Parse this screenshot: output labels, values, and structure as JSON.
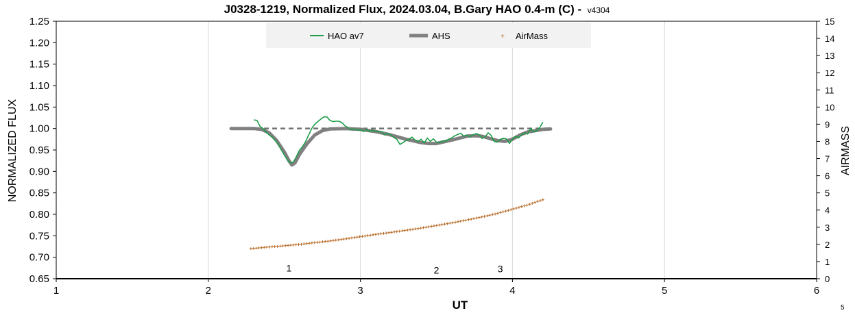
{
  "chart_data": {
    "type": "line",
    "title": "J0328-1219, Normalized Flux, 2024.03.04, B.Gary HAO 0.4-m (C) -",
    "title_suffix": "v4304",
    "xlabel": "UT",
    "ylabel": "NORMALIZED FLUX",
    "y2label": "AIRMASS",
    "xlim": [
      1,
      6
    ],
    "ylim": [
      0.65,
      1.25
    ],
    "y2lim": [
      0,
      15
    ],
    "xticks": [
      "1",
      "2",
      "3",
      "4",
      "5",
      "6"
    ],
    "yticks": [
      "0.65",
      "0.70",
      "0.75",
      "0.80",
      "0.85",
      "0.90",
      "0.95",
      "1.00",
      "1.05",
      "1.10",
      "1.15",
      "1.20",
      "1.25"
    ],
    "y2ticks": [
      "0",
      "1",
      "2",
      "3",
      "4",
      "5",
      "6",
      "7",
      "8",
      "9",
      "10",
      "11",
      "12",
      "13",
      "14",
      "15"
    ],
    "grid": "vertical",
    "legend_position": "top-center",
    "legend": [
      "HAO av7",
      "AHS",
      "AirMass"
    ],
    "colors": {
      "hao": "#1e9d48",
      "ahs": "#808080",
      "airmass": "#b5651d",
      "baseline": "#707070",
      "legend_bg": "#f2f2f2"
    },
    "series": [
      {
        "name": "HAO av7",
        "axis": "left",
        "x": [
          2.3,
          2.32,
          2.34,
          2.36,
          2.38,
          2.4,
          2.42,
          2.44,
          2.46,
          2.48,
          2.5,
          2.52,
          2.54,
          2.56,
          2.58,
          2.6,
          2.62,
          2.64,
          2.66,
          2.68,
          2.7,
          2.72,
          2.74,
          2.76,
          2.78,
          2.8,
          2.82,
          2.84,
          2.86,
          2.88,
          2.9,
          2.92,
          2.94,
          2.96,
          2.98,
          3.0,
          3.02,
          3.04,
          3.06,
          3.08,
          3.1,
          3.12,
          3.14,
          3.16,
          3.18,
          3.2,
          3.22,
          3.24,
          3.26,
          3.28,
          3.3,
          3.32,
          3.34,
          3.36,
          3.38,
          3.4,
          3.42,
          3.44,
          3.46,
          3.48,
          3.5,
          3.52,
          3.54,
          3.56,
          3.58,
          3.6,
          3.62,
          3.64,
          3.66,
          3.68,
          3.7,
          3.72,
          3.74,
          3.76,
          3.78,
          3.8,
          3.82,
          3.84,
          3.86,
          3.88,
          3.9,
          3.92,
          3.94,
          3.96,
          3.98,
          4.0,
          4.02,
          4.04,
          4.06,
          4.08,
          4.1,
          4.12,
          4.14,
          4.16,
          4.18,
          4.2
        ],
        "values": [
          1.02,
          1.019,
          1.005,
          1.0,
          0.992,
          0.985,
          0.98,
          0.972,
          0.963,
          0.95,
          0.938,
          0.927,
          0.92,
          0.922,
          0.935,
          0.95,
          0.958,
          0.97,
          0.985,
          1.0,
          1.01,
          1.016,
          1.022,
          1.027,
          1.027,
          1.019,
          1.016,
          1.017,
          1.017,
          1.013,
          1.006,
          1.002,
          0.997,
          0.999,
          0.996,
          0.997,
          0.993,
          0.998,
          0.993,
          0.996,
          0.994,
          0.992,
          0.993,
          0.985,
          0.989,
          0.985,
          0.979,
          0.975,
          0.963,
          0.967,
          0.972,
          0.975,
          0.98,
          0.973,
          0.97,
          0.975,
          0.966,
          0.978,
          0.97,
          0.976,
          0.968,
          0.967,
          0.971,
          0.97,
          0.975,
          0.978,
          0.983,
          0.986,
          0.989,
          0.982,
          0.985,
          0.981,
          0.985,
          0.988,
          0.986,
          0.977,
          0.98,
          0.99,
          0.984,
          0.97,
          0.968,
          0.975,
          0.977,
          0.976,
          0.965,
          0.975,
          0.982,
          0.978,
          0.985,
          0.99,
          0.987,
          1.0,
          0.992,
          0.995,
          1.002,
          1.015
        ]
      },
      {
        "name": "AHS",
        "axis": "left",
        "x": [
          2.15,
          2.3,
          2.35,
          2.4,
          2.45,
          2.5,
          2.53,
          2.55,
          2.57,
          2.6,
          2.65,
          2.7,
          2.75,
          2.8,
          2.9,
          3.0,
          3.1,
          3.2,
          3.3,
          3.4,
          3.45,
          3.5,
          3.6,
          3.7,
          3.75,
          3.8,
          3.85,
          3.9,
          3.95,
          4.0,
          4.05,
          4.1,
          4.2,
          4.25
        ],
        "values": [
          1.0,
          1.0,
          0.998,
          0.99,
          0.972,
          0.945,
          0.925,
          0.915,
          0.92,
          0.94,
          0.965,
          0.985,
          0.995,
          0.999,
          1.0,
          0.998,
          0.993,
          0.985,
          0.975,
          0.967,
          0.965,
          0.965,
          0.973,
          0.982,
          0.983,
          0.982,
          0.977,
          0.972,
          0.97,
          0.975,
          0.985,
          0.992,
          0.998,
          0.999
        ]
      },
      {
        "name": "AirMass",
        "axis": "right",
        "x": [
          2.28,
          2.4,
          2.5,
          2.6,
          2.7,
          2.8,
          2.9,
          3.0,
          3.1,
          3.2,
          3.3,
          3.4,
          3.5,
          3.6,
          3.7,
          3.8,
          3.9,
          4.0,
          4.1,
          4.2
        ],
        "values": [
          1.75,
          1.85,
          1.92,
          2.0,
          2.1,
          2.2,
          2.32,
          2.45,
          2.58,
          2.7,
          2.82,
          2.95,
          3.1,
          3.25,
          3.42,
          3.6,
          3.8,
          4.05,
          4.3,
          4.6
        ]
      },
      {
        "name": "",
        "axis": "left",
        "x": [
          2.15,
          4.25
        ],
        "values": [
          1.0,
          1.0
        ]
      }
    ],
    "annotations": [
      {
        "text": "1",
        "x": 2.53,
        "y": 0.675
      },
      {
        "text": "2",
        "x": 3.5,
        "y": 0.67
      },
      {
        "text": "3",
        "x": 3.92,
        "y": 0.673
      }
    ],
    "page_number": "5"
  }
}
